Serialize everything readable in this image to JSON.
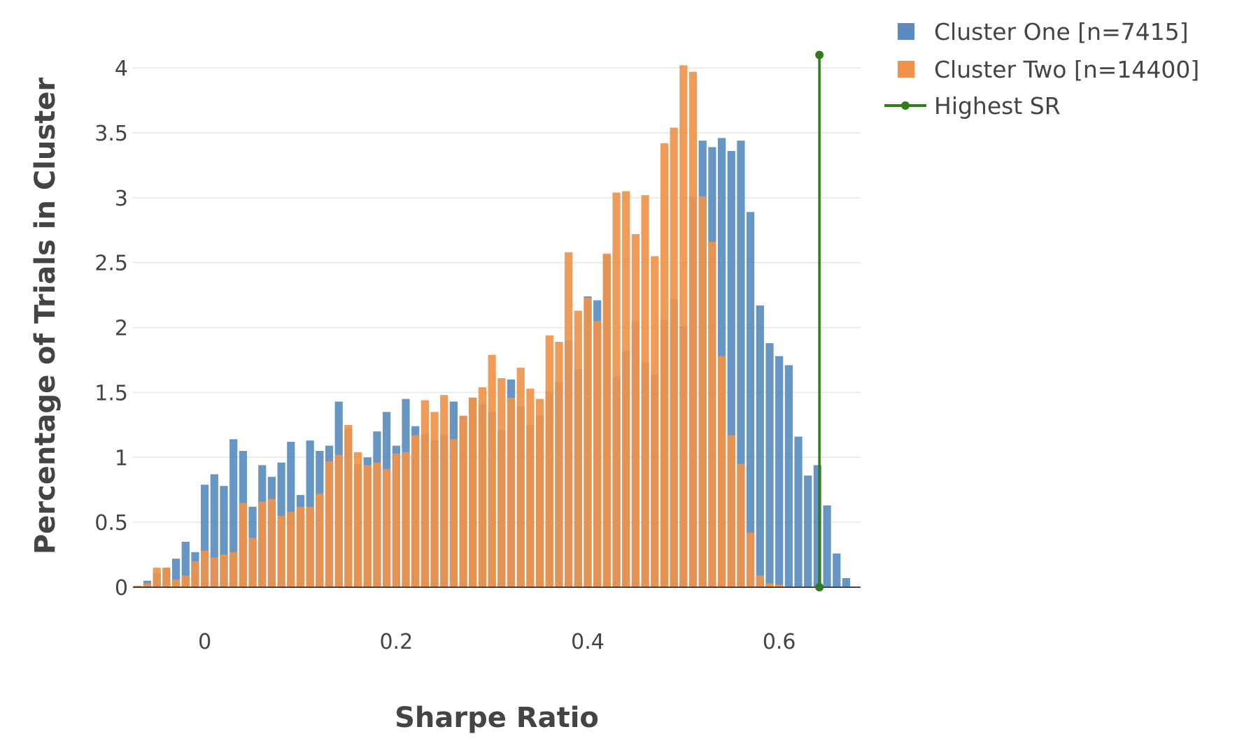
{
  "chart_data": {
    "type": "bar",
    "xlabel": "Sharpe Ratio",
    "ylabel": "Percentage of Trials in Cluster",
    "xlim": [
      -0.075,
      0.685
    ],
    "ylim": [
      0,
      4.2
    ],
    "x_ticks": [
      0,
      0.2,
      0.4,
      0.6
    ],
    "x_tick_labels": [
      "0",
      "0.2",
      "0.4",
      "0.6"
    ],
    "y_ticks": [
      0,
      0.5,
      1,
      1.5,
      2,
      2.5,
      3,
      3.5,
      4
    ],
    "y_tick_labels": [
      "0",
      "0.5",
      "1",
      "1.5",
      "2",
      "2.5",
      "3",
      "3.5",
      "4"
    ],
    "grid": true,
    "barmode": "overlay",
    "bin_start": -0.07,
    "bin_width": 0.01,
    "series": [
      {
        "name": "Cluster One [n=7415]",
        "type": "bar",
        "color": "#5a8cbf",
        "values": [
          0.01,
          0.05,
          0.11,
          0.15,
          0.22,
          0.35,
          0.27,
          0.79,
          0.87,
          0.78,
          1.14,
          1.05,
          0.62,
          0.94,
          0.85,
          0.96,
          1.12,
          0.71,
          1.13,
          1.05,
          1.09,
          1.43,
          1.22,
          0.95,
          1.0,
          1.2,
          1.35,
          1.09,
          1.45,
          1.24,
          1.18,
          1.13,
          1.18,
          1.43,
          1.32,
          1.46,
          1.41,
          1.35,
          1.21,
          1.6,
          1.39,
          1.25,
          1.32,
          1.51,
          1.58,
          1.9,
          1.68,
          2.24,
          2.21,
          2.56,
          1.62,
          1.82,
          2.05,
          1.73,
          1.64,
          2.06,
          2.22,
          2.01,
          3.01,
          3.44,
          3.39,
          3.46,
          3.36,
          3.44,
          2.89,
          2.17,
          1.88,
          1.78,
          1.71,
          1.16,
          0.86,
          0.94,
          0.63,
          0.26,
          0.07
        ],
        "note": "values estimated by reading bar heights against gridlines"
      },
      {
        "name": "Cluster Two [n=14400]",
        "type": "bar",
        "color": "#f0924a",
        "values": [
          0.01,
          0.03,
          0.15,
          0.15,
          0.06,
          0.09,
          0.2,
          0.28,
          0.23,
          0.25,
          0.27,
          0.65,
          0.38,
          0.66,
          0.68,
          0.55,
          0.58,
          0.62,
          0.62,
          0.72,
          0.97,
          1.02,
          1.25,
          1.04,
          0.94,
          0.96,
          0.91,
          1.03,
          1.04,
          1.17,
          1.44,
          1.35,
          1.48,
          1.14,
          1.32,
          1.46,
          1.54,
          1.79,
          1.61,
          1.46,
          1.69,
          1.53,
          1.45,
          1.94,
          1.89,
          2.58,
          2.13,
          2.23,
          2.05,
          2.57,
          3.04,
          3.05,
          2.72,
          3.02,
          2.55,
          3.42,
          3.54,
          4.02,
          3.97,
          3.01,
          2.66,
          1.78,
          1.17,
          0.95,
          0.42,
          0.09,
          0.03,
          0.02
        ],
        "offset_bins": 0
      },
      {
        "name": "Highest SR",
        "type": "line",
        "color": "#2e7d1a",
        "x": [
          0.642,
          0.642
        ],
        "y": [
          0,
          4.1
        ]
      }
    ],
    "legend_position": "top-right, outside plot"
  }
}
